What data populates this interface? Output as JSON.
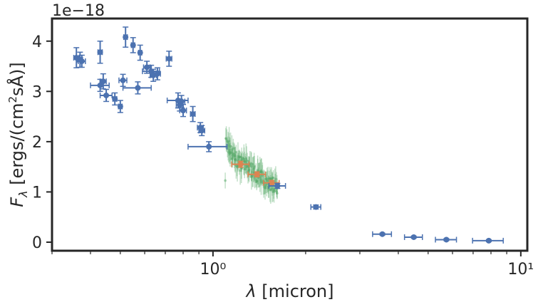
{
  "chart_data": {
    "type": "scatter",
    "xscale": "log",
    "xlim": [
      0.3,
      10.5
    ],
    "ylim": [
      -0.17,
      4.45
    ],
    "y_multiplier_label": "1e−18",
    "xlabel": "λ [micron]",
    "ylabel": "Fλ [ergs/(cm²sÅ)]",
    "xticks": [
      1,
      10
    ],
    "xtick_labels": [
      "10⁰",
      "10¹"
    ],
    "yticks": [
      0,
      1,
      2,
      3,
      4
    ],
    "ytick_labels": [
      "0",
      "1",
      "2",
      "3",
      "4"
    ],
    "colors": {
      "photometry": "#4c72b0",
      "spectrum_photometry": "#dd8452",
      "spectrum": "#55a868",
      "frame": "#262626"
    },
    "series": [
      {
        "points": [
          {
            "x": 0.36,
            "y": 3.67,
            "xerr": 0.007,
            "yerr": 0.2
          },
          {
            "x": 0.37,
            "y": 3.63,
            "xerr": 0.007,
            "yerr": 0.15
          },
          {
            "x": 0.375,
            "y": 3.6,
            "xerr": 0.01,
            "yerr": 0.12
          },
          {
            "x": 0.43,
            "y": 3.78,
            "xerr": 0.007,
            "yerr": 0.22
          },
          {
            "x": 0.43,
            "y": 3.12,
            "xerr": 0.03,
            "yerr": 0.12
          },
          {
            "x": 0.44,
            "y": 3.2,
            "xerr": 0.01,
            "yerr": 0.15
          },
          {
            "x": 0.45,
            "y": 2.92,
            "xerr": 0.02,
            "yerr": 0.12
          },
          {
            "x": 0.48,
            "y": 2.85,
            "xerr": 0.007,
            "yerr": 0.12
          },
          {
            "x": 0.5,
            "y": 2.7,
            "xerr": 0.007,
            "yerr": 0.12
          },
          {
            "x": 0.51,
            "y": 3.22,
            "xerr": 0.015,
            "yerr": 0.12
          },
          {
            "x": 0.52,
            "y": 4.08,
            "xerr": 0.007,
            "yerr": 0.2
          },
          {
            "x": 0.55,
            "y": 3.92,
            "xerr": 0.007,
            "yerr": 0.15
          },
          {
            "x": 0.57,
            "y": 3.07,
            "xerr": 0.06,
            "yerr": 0.12
          },
          {
            "x": 0.58,
            "y": 3.77,
            "xerr": 0.007,
            "yerr": 0.15
          },
          {
            "x": 0.61,
            "y": 3.48,
            "xerr": 0.015,
            "yerr": 0.12
          },
          {
            "x": 0.63,
            "y": 3.4,
            "xerr": 0.04,
            "yerr": 0.12
          },
          {
            "x": 0.64,
            "y": 3.32,
            "xerr": 0.015,
            "yerr": 0.12
          },
          {
            "x": 0.66,
            "y": 3.35,
            "xerr": 0.015,
            "yerr": 0.12
          },
          {
            "x": 0.72,
            "y": 3.65,
            "xerr": 0.015,
            "yerr": 0.15
          },
          {
            "x": 0.77,
            "y": 2.82,
            "xerr": 0.06,
            "yerr": 0.15
          },
          {
            "x": 0.78,
            "y": 2.73,
            "xerr": 0.02,
            "yerr": 0.12
          },
          {
            "x": 0.79,
            "y": 2.8,
            "xerr": 0.02,
            "yerr": 0.12
          },
          {
            "x": 0.8,
            "y": 2.62,
            "xerr": 0.02,
            "yerr": 0.12
          },
          {
            "x": 0.86,
            "y": 2.55,
            "xerr": 0.015,
            "yerr": 0.15
          },
          {
            "x": 0.91,
            "y": 2.28,
            "xerr": 0.02,
            "yerr": 0.1
          },
          {
            "x": 0.92,
            "y": 2.22,
            "xerr": 0.02,
            "yerr": 0.1
          },
          {
            "x": 0.97,
            "y": 1.9,
            "xerr": 0.14,
            "yerr": 0.1
          },
          {
            "x": 1.62,
            "y": 1.12,
            "xerr": 0.1,
            "yerr": 0.05
          },
          {
            "x": 2.16,
            "y": 0.7,
            "xerr": 0.08,
            "yerr": 0.04
          },
          {
            "x": 3.55,
            "y": 0.16,
            "xerr": 0.25,
            "yerr": 0.02
          },
          {
            "x": 4.49,
            "y": 0.1,
            "xerr": 0.3,
            "yerr": 0.02
          },
          {
            "x": 5.73,
            "y": 0.05,
            "xerr": 0.45,
            "yerr": 0.02
          },
          {
            "x": 7.87,
            "y": 0.03,
            "xerr": 0.9,
            "yerr": 0.02
          }
        ]
      },
      {
        "points": [
          {
            "x": 1.23,
            "y": 1.55,
            "xerr": 0.08,
            "yerr": 0.06
          },
          {
            "x": 1.39,
            "y": 1.35,
            "xerr": 0.09,
            "yerr": 0.05
          },
          {
            "x": 1.55,
            "y": 1.18,
            "xerr": 0.09,
            "yerr": 0.05
          }
        ]
      },
      {
        "style": "spectrum",
        "x_range": [
          1.1,
          1.62
        ],
        "trend": [
          [
            1.1,
            2.0
          ],
          [
            1.2,
            1.6
          ],
          [
            1.3,
            1.5
          ],
          [
            1.4,
            1.32
          ],
          [
            1.5,
            1.2
          ],
          [
            1.62,
            1.1
          ]
        ],
        "n_samples": 140,
        "scatter": 0.15,
        "err": 0.25
      }
    ]
  }
}
